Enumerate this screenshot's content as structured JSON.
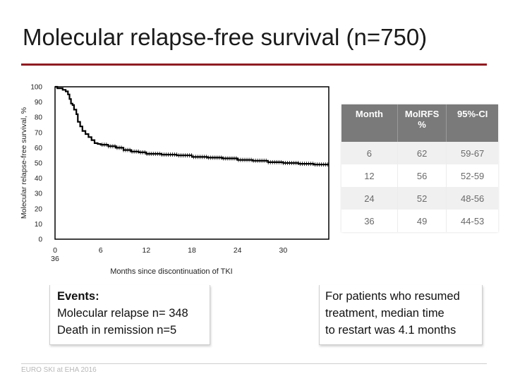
{
  "slide": {
    "title": "Molecular relapse-free survival (n=750)",
    "footer": "EURO SKI at EHA 2016"
  },
  "chart_data": {
    "type": "line",
    "xlabel": "Months since discontinuation of TKI",
    "ylabel": "Molecular relapse-free survival, %",
    "xlim": [
      0,
      36
    ],
    "ylim": [
      0,
      100
    ],
    "x_ticks": [
      "0",
      "6",
      "12",
      "18",
      "24",
      "30",
      "36"
    ],
    "y_ticks": [
      "0",
      "10",
      "20",
      "30",
      "40",
      "50",
      "60",
      "70",
      "80",
      "90",
      "100"
    ],
    "grid": false,
    "series": [
      {
        "color": "#000000",
        "x": [
          0,
          0.3,
          0.6,
          1.0,
          1.4,
          1.7,
          1.9,
          2.1,
          2.3,
          2.5,
          2.8,
          3.0,
          3.3,
          3.6,
          4.0,
          4.4,
          4.8,
          5.2,
          5.6,
          6.0,
          7,
          8,
          9,
          10,
          11,
          12,
          14,
          16,
          18,
          20,
          22,
          24,
          26,
          28,
          30,
          32,
          34,
          36
        ],
        "values": [
          100,
          99,
          99,
          98,
          97,
          95,
          92,
          89,
          88,
          85,
          82,
          77,
          74,
          71,
          69,
          67,
          65,
          63,
          62.5,
          62,
          61,
          60,
          58.5,
          57.5,
          57,
          56,
          55.5,
          55,
          54,
          53.5,
          53,
          52,
          51.5,
          50.5,
          50,
          49.5,
          49,
          49
        ]
      }
    ]
  },
  "table": {
    "headers": [
      "Month",
      "MolRFS\n%",
      "95%-CI"
    ],
    "rows": [
      [
        "6",
        "62",
        "59-67"
      ],
      [
        "12",
        "56",
        "52-59"
      ],
      [
        "24",
        "52",
        "48-56"
      ],
      [
        "36",
        "49",
        "44-53"
      ]
    ]
  },
  "events_box": {
    "heading": "Events:",
    "line1": "Molecular relapse n= 348",
    "line2": "Death in remission n=5"
  },
  "resume_box": {
    "line1": "For patients who resumed",
    "line2": "treatment, median time",
    "line3": "to restart was 4.1 months"
  }
}
